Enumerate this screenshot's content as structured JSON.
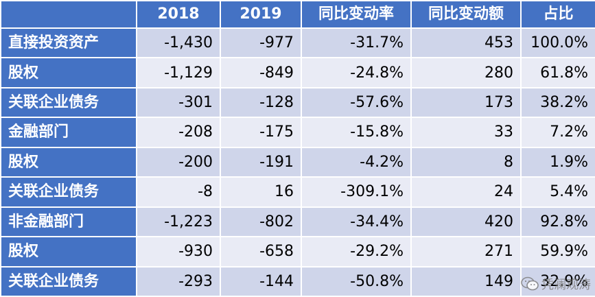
{
  "table": {
    "headers": [
      "",
      "2018",
      "2019",
      "同比变动率",
      "同比变动额",
      "占比"
    ],
    "rows": [
      {
        "label": "直接投资资产",
        "values": [
          "-1,430",
          "-977",
          "-31.7%",
          "453",
          "100.0%"
        ]
      },
      {
        "label": "股权",
        "values": [
          "-1,129",
          "-849",
          "-24.8%",
          "280",
          "61.8%"
        ]
      },
      {
        "label": "关联企业债务",
        "values": [
          "-301",
          "-128",
          "-57.6%",
          "173",
          "38.2%"
        ]
      },
      {
        "label": "金融部门",
        "values": [
          "-208",
          "-175",
          "-15.8%",
          "33",
          "7.2%"
        ]
      },
      {
        "label": "股权",
        "values": [
          "-200",
          "-191",
          "-4.2%",
          "8",
          "1.9%"
        ]
      },
      {
        "label": "关联企业债务",
        "values": [
          "-8",
          "16",
          "-309.1%",
          "24",
          "5.4%"
        ]
      },
      {
        "label": "非金融部门",
        "values": [
          "-1,223",
          "-802",
          "-34.4%",
          "420",
          "92.8%"
        ]
      },
      {
        "label": "股权",
        "values": [
          "-930",
          "-658",
          "-29.2%",
          "271",
          "59.9%"
        ]
      },
      {
        "label": "关联企业债务",
        "values": [
          "-293",
          "-144",
          "-50.8%",
          "149",
          "32.9%"
        ]
      }
    ]
  },
  "watermark": {
    "text": "凭澜观涛",
    "icon": "wechat-icon"
  },
  "colors": {
    "header_bg": "#4472c4",
    "row_odd": "#cfd5ea",
    "row_even": "#e9ebf5"
  }
}
